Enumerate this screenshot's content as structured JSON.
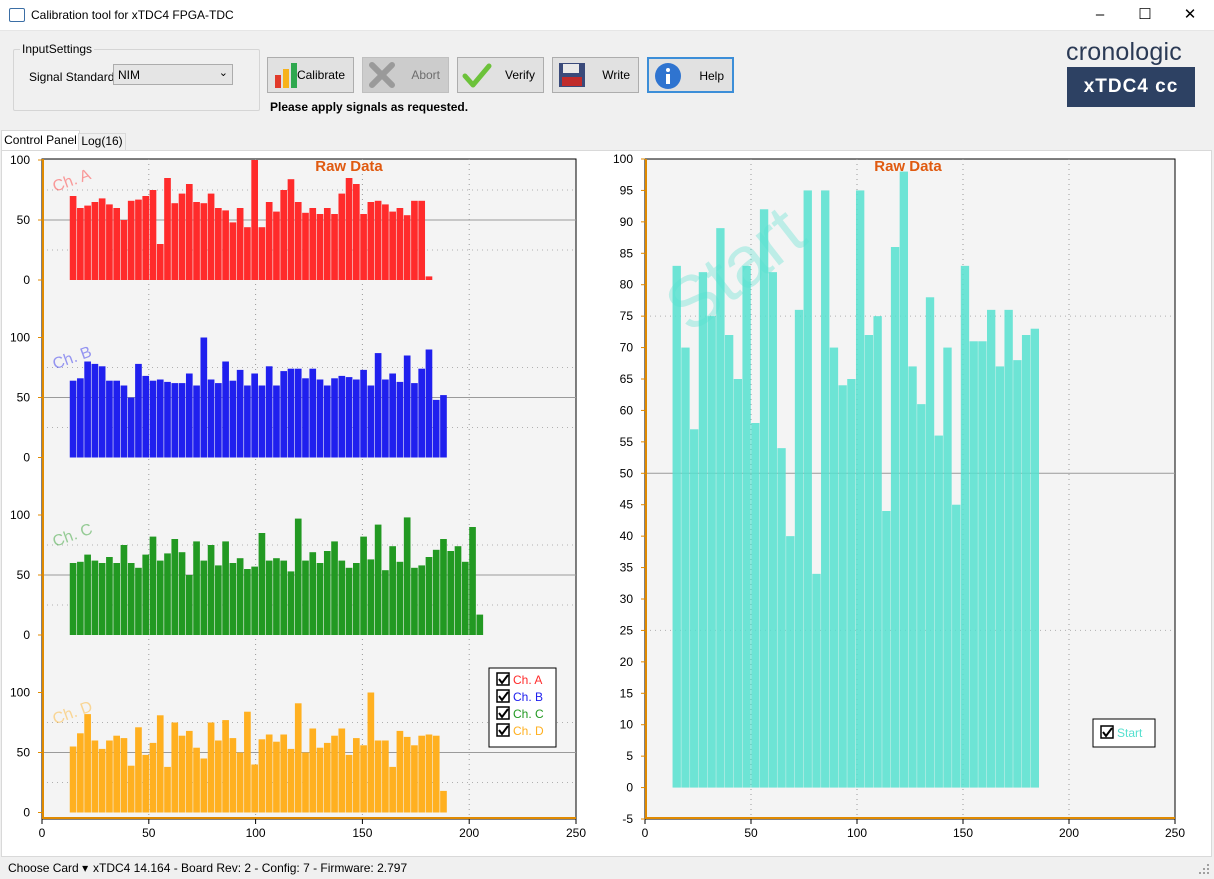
{
  "window": {
    "title": "Calibration tool for xTDC4 FPGA-TDC",
    "minimize": "–",
    "maximize": "☐",
    "close": "✕"
  },
  "input_settings": {
    "legend": "InputSettings",
    "signal_standard_label": "Signal Standard",
    "signal_standard_value": "NIM"
  },
  "toolbar": {
    "calibrate": "Calibrate",
    "abort": "Abort",
    "verify": "Verify",
    "write": "Write",
    "help": "Help"
  },
  "status_message": "Please apply signals as requested.",
  "logo": {
    "brand": "cronologic",
    "product": "xTDC4 cc"
  },
  "tabs": [
    {
      "label": "Control Panel",
      "active": true
    },
    {
      "label": "Log(16)",
      "active": false
    }
  ],
  "statusbar": {
    "choose_card": "Choose Card",
    "info": "xTDC4 14.164 - Board Rev: 2 - Config: 7 - Firmware: 2.797"
  },
  "colors": {
    "ch_a": "#ff2b2b",
    "ch_b": "#2020ee",
    "ch_c": "#229922",
    "ch_d": "#ffb020",
    "start": "#55e0cf",
    "chart_bg": "#f4f4f4"
  },
  "chart_data": [
    {
      "type": "bar",
      "title": "Raw Data",
      "x_range": [
        0,
        250
      ],
      "x_ticks": [
        0,
        50,
        100,
        150,
        200,
        250
      ],
      "y_ticks": [
        0,
        50,
        100
      ],
      "grid": true,
      "legend": "bottom-right",
      "bin_start": 13,
      "bin_width": 2,
      "series": [
        {
          "name": "Ch. A",
          "color": "#ff2b2b",
          "values": [
            70,
            60,
            62,
            65,
            68,
            63,
            60,
            50,
            66,
            67,
            70,
            75,
            30,
            85,
            64,
            72,
            80,
            65,
            64,
            72,
            60,
            58,
            48,
            60,
            44,
            100,
            44,
            65,
            57,
            75,
            84,
            65,
            56,
            60,
            55,
            60,
            55,
            72,
            85,
            80,
            55,
            65,
            66,
            63,
            57,
            60,
            54,
            66,
            66,
            3
          ]
        },
        {
          "name": "Ch. B",
          "color": "#2020ee",
          "values": [
            64,
            66,
            80,
            78,
            76,
            64,
            64,
            60,
            50,
            78,
            68,
            64,
            65,
            63,
            62,
            62,
            70,
            60,
            100,
            65,
            62,
            80,
            64,
            73,
            60,
            70,
            60,
            76,
            60,
            72,
            74,
            74,
            66,
            74,
            65,
            60,
            66,
            68,
            67,
            65,
            73,
            60,
            87,
            65,
            70,
            63,
            85,
            62,
            74,
            90,
            48,
            52
          ]
        },
        {
          "name": "Ch. C",
          "color": "#229922",
          "values": [
            60,
            61,
            67,
            62,
            60,
            65,
            60,
            75,
            60,
            56,
            67,
            82,
            62,
            68,
            80,
            69,
            50,
            78,
            62,
            75,
            58,
            78,
            60,
            64,
            55,
            57,
            85,
            62,
            64,
            62,
            53,
            97,
            62,
            69,
            60,
            70,
            78,
            62,
            56,
            60,
            82,
            63,
            92,
            54,
            74,
            61,
            98,
            56,
            58,
            65,
            71,
            80,
            70,
            74,
            61,
            90,
            17
          ]
        },
        {
          "name": "Ch. D",
          "color": "#ffb020",
          "values": [
            55,
            66,
            82,
            60,
            53,
            60,
            64,
            62,
            39,
            71,
            48,
            58,
            81,
            38,
            75,
            64,
            68,
            54,
            45,
            75,
            60,
            77,
            62,
            50,
            84,
            40,
            61,
            65,
            59,
            65,
            53,
            91,
            50,
            70,
            54,
            58,
            64,
            70,
            48,
            62,
            56,
            100,
            60,
            60,
            38,
            68,
            63,
            56,
            64,
            65,
            64,
            18
          ]
        }
      ]
    },
    {
      "type": "bar",
      "title": "Raw Data",
      "watermark": "Start",
      "x_range": [
        0,
        250
      ],
      "x_ticks": [
        0,
        50,
        100,
        150,
        200,
        250
      ],
      "y_range": [
        -5,
        100
      ],
      "y_ticks": [
        -5,
        0,
        5,
        10,
        15,
        20,
        25,
        30,
        35,
        40,
        45,
        50,
        55,
        60,
        65,
        70,
        75,
        80,
        85,
        90,
        95,
        100
      ],
      "grid": true,
      "legend": "bottom-right",
      "bin_start": 13,
      "bin_width": 4,
      "series": [
        {
          "name": "Start",
          "color": "#55e0cf",
          "values": [
            83,
            70,
            57,
            82,
            75,
            89,
            72,
            65,
            83,
            58,
            92,
            82,
            54,
            40,
            76,
            95,
            34,
            95,
            70,
            64,
            65,
            95,
            72,
            75,
            44,
            86,
            98,
            67,
            61,
            78,
            56,
            70,
            45,
            83,
            71,
            71,
            76,
            67,
            76,
            68,
            72,
            73
          ]
        }
      ]
    }
  ]
}
